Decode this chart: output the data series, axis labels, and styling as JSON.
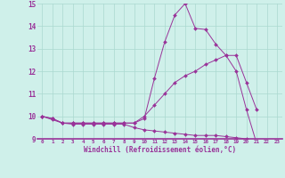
{
  "x_hours": [
    0,
    1,
    2,
    3,
    4,
    5,
    6,
    7,
    8,
    9,
    10,
    11,
    12,
    13,
    14,
    15,
    16,
    17,
    18,
    19,
    20,
    21,
    22,
    23
  ],
  "line1": [
    10.0,
    9.9,
    9.7,
    9.7,
    9.7,
    9.7,
    9.7,
    9.7,
    9.7,
    9.7,
    9.9,
    11.7,
    13.3,
    14.5,
    15.0,
    13.9,
    13.85,
    13.2,
    12.7,
    12.0,
    10.3,
    8.8,
    null,
    null
  ],
  "line2": [
    10.0,
    9.9,
    9.7,
    9.7,
    9.7,
    9.7,
    9.7,
    9.7,
    9.7,
    9.7,
    10.0,
    10.5,
    11.0,
    11.5,
    11.8,
    12.0,
    12.3,
    12.5,
    12.7,
    12.7,
    11.5,
    10.3,
    null,
    null
  ],
  "line3": [
    10.0,
    9.85,
    9.7,
    9.65,
    9.65,
    9.65,
    9.65,
    9.65,
    9.65,
    9.5,
    9.4,
    9.35,
    9.3,
    9.25,
    9.2,
    9.15,
    9.15,
    9.15,
    9.1,
    9.05,
    9.0,
    8.9,
    8.85,
    8.8
  ],
  "bg_color": "#cff0ea",
  "grid_color": "#aad8d0",
  "line_color": "#993399",
  "xlim": [
    0,
    23
  ],
  "ylim": [
    9,
    15
  ],
  "yticks": [
    9,
    10,
    11,
    12,
    13,
    14,
    15
  ],
  "xticks": [
    0,
    1,
    2,
    3,
    4,
    5,
    6,
    7,
    8,
    9,
    10,
    11,
    12,
    13,
    14,
    15,
    16,
    17,
    18,
    19,
    20,
    21,
    22,
    23
  ],
  "xlabel": "Windchill (Refroidissement éolien,°C)",
  "marker": "D",
  "marker_size": 2.0
}
